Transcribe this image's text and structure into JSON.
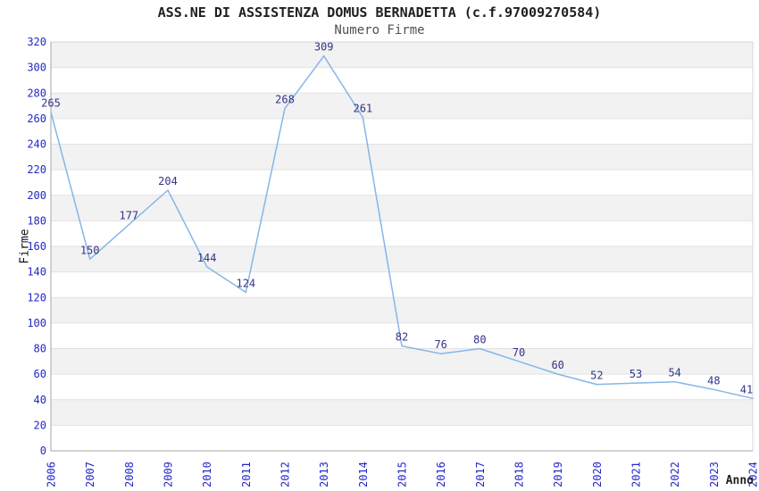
{
  "page": {
    "title": "ASS.NE DI ASSISTENZA DOMUS BERNADETTA (c.f.97009270584)",
    "subtitle": "Numero Firme"
  },
  "chart_data": {
    "type": "line",
    "title": "ASS.NE DI ASSISTENZA DOMUS BERNADETTA (c.f.97009270584)",
    "subtitle": "Numero Firme",
    "xlabel": "Anno",
    "ylabel": "Firme",
    "x": [
      2006,
      2007,
      2008,
      2009,
      2010,
      2011,
      2012,
      2013,
      2014,
      2015,
      2016,
      2017,
      2018,
      2019,
      2020,
      2021,
      2022,
      2023,
      2024
    ],
    "series": [
      {
        "name": "Numero Firme",
        "values": [
          265,
          150,
          177,
          204,
          144,
          124,
          268,
          309,
          261,
          82,
          76,
          80,
          70,
          60,
          52,
          53,
          54,
          48,
          41
        ]
      }
    ],
    "ylim": [
      0,
      320
    ],
    "ytick_step": 20,
    "yticks": [
      0,
      20,
      40,
      60,
      80,
      100,
      120,
      140,
      160,
      180,
      200,
      220,
      240,
      260,
      280,
      300,
      320
    ],
    "grid": true,
    "banded_background": true,
    "data_labels_visible": true,
    "legend_position": "none",
    "colors": {
      "line": "#85b6e8",
      "data_label": "#333388",
      "tick_label": "#2327c8",
      "band": "#f2f2f2",
      "gridline": "#e2e2e2",
      "plot_border": "#d6d6d6",
      "axis_line": "#a6a6a6",
      "title": "#1f1f1f",
      "subtitle": "#4d5058",
      "axis_title": "#111111"
    }
  }
}
